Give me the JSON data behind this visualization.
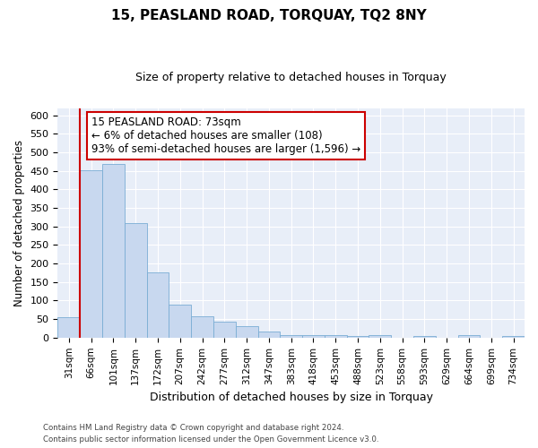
{
  "title": "15, PEASLAND ROAD, TORQUAY, TQ2 8NY",
  "subtitle": "Size of property relative to detached houses in Torquay",
  "xlabel": "Distribution of detached houses by size in Torquay",
  "ylabel": "Number of detached properties",
  "bar_color": "#c8d8ef",
  "bar_edge_color": "#7aadd4",
  "background_color": "#e8eef8",
  "grid_color": "#ffffff",
  "fig_bg_color": "#ffffff",
  "categories": [
    "31sqm",
    "66sqm",
    "101sqm",
    "137sqm",
    "172sqm",
    "207sqm",
    "242sqm",
    "277sqm",
    "312sqm",
    "347sqm",
    "383sqm",
    "418sqm",
    "453sqm",
    "488sqm",
    "523sqm",
    "558sqm",
    "593sqm",
    "629sqm",
    "664sqm",
    "699sqm",
    "734sqm"
  ],
  "values": [
    54,
    452,
    470,
    310,
    175,
    89,
    58,
    42,
    32,
    16,
    8,
    8,
    8,
    5,
    8,
    0,
    5,
    0,
    6,
    0,
    5
  ],
  "ylim": [
    0,
    620
  ],
  "yticks": [
    0,
    50,
    100,
    150,
    200,
    250,
    300,
    350,
    400,
    450,
    500,
    550,
    600
  ],
  "vline_x_idx": 1,
  "vline_color": "#cc0000",
  "annotation_text": "15 PEASLAND ROAD: 73sqm\n← 6% of detached houses are smaller (108)\n93% of semi-detached houses are larger (1,596) →",
  "annotation_box_color": "#ffffff",
  "annotation_box_edge": "#cc0000",
  "footer1": "Contains HM Land Registry data © Crown copyright and database right 2024.",
  "footer2": "Contains public sector information licensed under the Open Government Licence v3.0."
}
